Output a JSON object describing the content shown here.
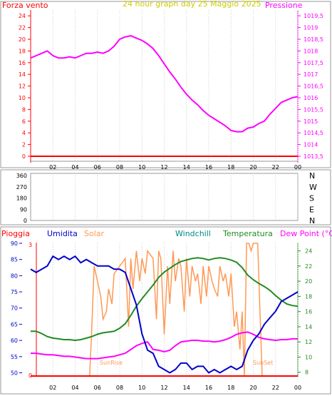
{
  "panel1": {
    "left_label": "Forza vento",
    "title": "24 hour graph day   25 Maggio 2025",
    "right_label": "Pressione",
    "left_ticks": [
      "24",
      "22",
      "20",
      "18",
      "16",
      "14",
      "12",
      "10",
      "8",
      "6",
      "4",
      "2",
      "0"
    ],
    "right_ticks": [
      "1019,5",
      "1019",
      "1018,5",
      "1018",
      "1017,5",
      "1017",
      "1016,5",
      "1016",
      "1015,5",
      "1015",
      "1014,5",
      "1014",
      "1013,5"
    ]
  },
  "panel2": {
    "left_ticks": [
      "360",
      "270",
      "180",
      "90",
      "0"
    ],
    "right_labels": [
      "N",
      "W",
      "S",
      "E",
      "N"
    ]
  },
  "panel3": {
    "legend": {
      "rain": "Pioggia",
      "humidity": "Umidita",
      "solar": "Solar",
      "windchill": "Windchill",
      "temperature": "Temperatura",
      "dewpoint": "Dew Point (°C)"
    },
    "left_ticks": [
      "90",
      "85",
      "80",
      "75",
      "70",
      "65",
      "60",
      "55",
      "50"
    ],
    "right_ticks": [
      "24",
      "22",
      "20",
      "18",
      "16",
      "14",
      "12",
      "10",
      "8"
    ],
    "rain_ticks": [
      "3",
      "0"
    ],
    "sunrise": "SunRise",
    "sunset": "SunSet"
  },
  "x_ticks": [
    "02",
    "04",
    "06",
    "08",
    "10",
    "12",
    "14",
    "16",
    "18",
    "20",
    "22",
    "00"
  ],
  "colors": {
    "pressure": "#ff00ff",
    "wind": "#ff0000",
    "humidity": "#0000cc",
    "temperature": "#228b22",
    "dewpoint": "#ff00ff",
    "solar": "#ff9955",
    "rain": "#ff0000",
    "left_axis": "#ff0000",
    "right_axis": "#ff00ff",
    "grid": "#cccccc"
  },
  "chart_data": [
    {
      "type": "line",
      "title": "24 hour graph day   25 Maggio 2025",
      "x_unit": "hour",
      "xlim": [
        0,
        24
      ],
      "series": [
        {
          "name": "Pressione",
          "axis": "right",
          "ylim": [
            1013.5,
            1019.75
          ],
          "x": [
            0,
            0.5,
            1,
            1.5,
            2,
            2.5,
            3,
            3.5,
            4,
            4.5,
            5,
            5.5,
            6,
            6.5,
            7,
            7.5,
            8,
            8.5,
            9,
            9.5,
            10,
            10.5,
            11,
            11.5,
            12,
            12.5,
            13,
            13.5,
            14,
            14.5,
            15,
            15.5,
            16,
            16.5,
            17,
            17.5,
            18,
            18.5,
            19,
            19.5,
            20,
            20.5,
            21,
            21.5,
            22,
            22.5,
            23,
            23.5,
            24
          ],
          "values": [
            1017.7,
            1017.8,
            1017.9,
            1018.0,
            1017.8,
            1017.7,
            1017.7,
            1017.75,
            1017.7,
            1017.8,
            1017.9,
            1017.9,
            1017.95,
            1017.9,
            1018.0,
            1018.2,
            1018.5,
            1018.6,
            1018.65,
            1018.55,
            1018.45,
            1018.3,
            1018.1,
            1017.8,
            1017.45,
            1017.1,
            1016.8,
            1016.45,
            1016.15,
            1015.9,
            1015.7,
            1015.45,
            1015.25,
            1015.1,
            1014.95,
            1014.8,
            1014.6,
            1014.55,
            1014.55,
            1014.7,
            1014.75,
            1014.9,
            1015.0,
            1015.3,
            1015.55,
            1015.8,
            1015.9,
            1016.0,
            1016.05
          ]
        },
        {
          "name": "Forza vento",
          "axis": "left",
          "ylim": [
            0,
            25
          ],
          "x": [
            0,
            24
          ],
          "values": [
            0,
            0
          ]
        }
      ]
    },
    {
      "type": "line",
      "x_unit": "hour",
      "xlim": [
        0,
        24
      ],
      "series": [
        {
          "name": "Direzione vento",
          "axis": "left",
          "ylim": [
            0,
            360
          ],
          "x": [],
          "values": []
        }
      ]
    },
    {
      "type": "line",
      "x_unit": "hour",
      "xlim": [
        0,
        24
      ],
      "series": [
        {
          "name": "Umidita",
          "axis": "left",
          "ylim": [
            49,
            90
          ],
          "x": [
            0,
            0.5,
            1,
            1.5,
            2,
            2.5,
            3,
            3.5,
            4,
            4.5,
            5,
            5.5,
            6,
            6.5,
            7,
            7.5,
            8,
            8.5,
            9,
            9.5,
            10,
            10.5,
            11,
            11.5,
            12,
            12.5,
            13,
            13.5,
            14,
            14.5,
            15,
            15.5,
            16,
            16.5,
            17,
            17.5,
            18,
            18.5,
            19,
            19.5,
            20,
            20.5,
            21,
            21.5,
            22,
            22.5,
            23,
            23.5,
            24
          ],
          "values": [
            82,
            81,
            82,
            83,
            86,
            85,
            86,
            85,
            86,
            84,
            85,
            84,
            83,
            83,
            83,
            82,
            82,
            81,
            76,
            71,
            62,
            57,
            56,
            52,
            51,
            50,
            51,
            53,
            53,
            51,
            52,
            52,
            50,
            51,
            50,
            51,
            52,
            51,
            52,
            57,
            60,
            62,
            65,
            67,
            69,
            72,
            73,
            74,
            75
          ]
        },
        {
          "name": "Temperatura",
          "axis": "right",
          "ylim": [
            7.5,
            25
          ],
          "x": [
            0,
            0.5,
            1,
            1.5,
            2,
            2.5,
            3,
            3.5,
            4,
            4.5,
            5,
            5.5,
            6,
            6.5,
            7,
            7.5,
            8,
            8.5,
            9,
            9.5,
            10,
            10.5,
            11,
            11.5,
            12,
            12.5,
            13,
            13.5,
            14,
            14.5,
            15,
            15.5,
            16,
            16.5,
            17,
            17.5,
            18,
            18.5,
            19,
            19.5,
            20,
            20.5,
            21,
            21.5,
            22,
            22.5,
            23,
            23.5,
            24
          ],
          "values": [
            13.4,
            13.4,
            13.1,
            12.7,
            12.5,
            12.4,
            12.3,
            12.3,
            12.2,
            12.3,
            12.5,
            12.7,
            13.0,
            13.2,
            13.3,
            13.4,
            13.8,
            14.4,
            15.5,
            16.7,
            17.7,
            18.6,
            19.5,
            20.5,
            21.2,
            21.7,
            22.2,
            22.6,
            22.8,
            23.0,
            23.1,
            23.0,
            22.8,
            23.0,
            23.1,
            23.0,
            22.8,
            22.5,
            21.8,
            20.8,
            20.2,
            19.7,
            19.3,
            18.8,
            18.1,
            17.5,
            17.0,
            16.8,
            16.7
          ]
        },
        {
          "name": "Windchill",
          "axis": "right",
          "ylim": [
            7.5,
            25
          ],
          "x": [
            0,
            0.5,
            1,
            1.5,
            2,
            2.5,
            3,
            3.5,
            4,
            4.5,
            5,
            5.5,
            6,
            6.5,
            7,
            7.5,
            8,
            8.5,
            9,
            9.5,
            10,
            10.5,
            11,
            11.5,
            12,
            12.5,
            13,
            13.5,
            14,
            14.5,
            15,
            15.5,
            16,
            16.5,
            17,
            17.5,
            18,
            18.5,
            19,
            19.5,
            20,
            20.5,
            21,
            21.5,
            22,
            22.5,
            23,
            23.5,
            24
          ],
          "values": [
            13.4,
            13.4,
            13.1,
            12.7,
            12.5,
            12.4,
            12.3,
            12.3,
            12.2,
            12.3,
            12.5,
            12.7,
            13.0,
            13.2,
            13.3,
            13.4,
            13.8,
            14.4,
            15.5,
            16.7,
            17.7,
            18.6,
            19.5,
            20.5,
            21.2,
            21.7,
            22.2,
            22.6,
            22.8,
            23.0,
            23.1,
            23.0,
            22.8,
            23.0,
            23.1,
            23.0,
            22.8,
            22.5,
            21.8,
            20.8,
            20.2,
            19.7,
            19.3,
            18.8,
            18.1,
            17.5,
            17.0,
            16.8,
            16.7
          ]
        },
        {
          "name": "Dew Point (°C)",
          "axis": "right",
          "ylim": [
            7.5,
            25
          ],
          "x": [
            0,
            0.5,
            1,
            1.5,
            2,
            2.5,
            3,
            3.5,
            4,
            4.5,
            5,
            5.5,
            6,
            6.5,
            7,
            7.5,
            8,
            8.5,
            9,
            9.5,
            10,
            10.5,
            11,
            11.5,
            12,
            12.5,
            13,
            13.5,
            14,
            14.5,
            15,
            15.5,
            16,
            16.5,
            17,
            17.5,
            18,
            18.5,
            19,
            19.5,
            20,
            20.5,
            21,
            21.5,
            22,
            22.5,
            23,
            23.5,
            24
          ],
          "values": [
            10.5,
            10.5,
            10.4,
            10.3,
            10.3,
            10.2,
            10.1,
            10.1,
            10.0,
            9.9,
            9.8,
            9.8,
            9.8,
            9.9,
            10.0,
            10.1,
            10.3,
            10.5,
            11.0,
            11.5,
            11.8,
            12.0,
            11.0,
            10.9,
            10.7,
            10.9,
            11.5,
            12.0,
            12.1,
            12.2,
            12.2,
            12.1,
            12.1,
            12.0,
            12.1,
            12.3,
            12.6,
            13.0,
            13.2,
            13.3,
            13.0,
            12.6,
            12.4,
            12.3,
            12.2,
            12.3,
            12.3,
            12.4,
            12.4
          ]
        },
        {
          "name": "Solar",
          "axis": "right",
          "ylim": [
            7.5,
            25
          ],
          "x": [
            0,
            5.3,
            5.5,
            5.7,
            6,
            6.3,
            6.5,
            6.8,
            7,
            7.3,
            7.5,
            8,
            8.5,
            8.8,
            9,
            9.2,
            9.5,
            9.8,
            10,
            10.3,
            10.5,
            11,
            11.3,
            11.5,
            11.7,
            12,
            12.3,
            12.5,
            12.8,
            13,
            13.3,
            13.5,
            13.8,
            14,
            14.3,
            14.5,
            14.8,
            15,
            15.3,
            15.5,
            15.8,
            16,
            16.3,
            16.5,
            16.8,
            17,
            17.3,
            17.5,
            17.8,
            18,
            18.3,
            18.5,
            18.8,
            19,
            19.2,
            19.4,
            19.6,
            19.8,
            20,
            20.2,
            20.4,
            20.6,
            20.8,
            21,
            24
          ],
          "values": [
            7.5,
            7.5,
            14,
            22,
            20,
            18,
            15,
            16,
            19,
            17,
            21,
            22,
            23,
            14,
            23,
            19,
            24,
            20,
            23,
            21,
            24,
            23,
            15,
            24,
            23,
            13,
            22,
            17,
            24,
            20,
            23,
            22,
            16,
            23,
            18,
            22,
            20,
            21,
            17,
            22,
            18,
            22,
            20,
            19,
            18,
            22,
            20,
            21,
            18,
            21,
            14,
            16,
            11,
            16,
            7.5,
            25,
            25,
            24,
            25,
            25,
            25,
            16,
            7.5,
            7.5,
            7.5
          ]
        },
        {
          "name": "Pioggia",
          "axis": "rain",
          "ylim": [
            0,
            3
          ],
          "x": [
            0,
            24
          ],
          "values": [
            0,
            0
          ]
        }
      ]
    }
  ]
}
